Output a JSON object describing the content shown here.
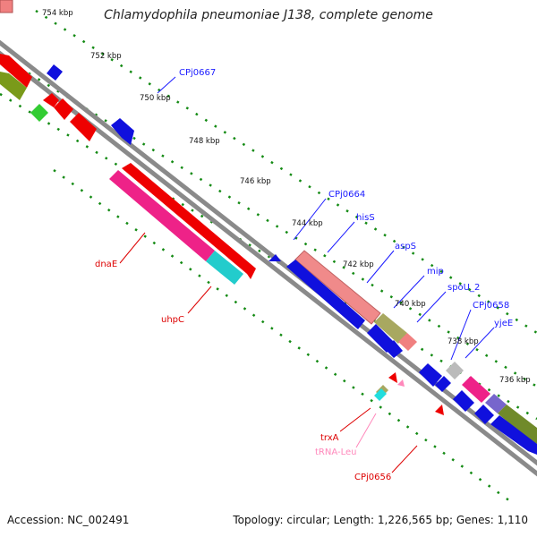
{
  "title": "Chlamydophila pneumoniae J138, complete genome",
  "footer": {
    "accession": "Accession: NC_002491",
    "summary": "Topology: circular; Length: 1,226,565 bp; Genes: 1,110"
  },
  "ruler_ticks": [
    "754 kbp",
    "752 kbp",
    "750 kbp",
    "748 kbp",
    "746 kbp",
    "744 kbp",
    "742 kbp",
    "740 kbp",
    "738 kbp",
    "736 kbp"
  ],
  "gene_labels": {
    "forward": [
      "CPj0667",
      "CPj0664",
      "hisS",
      "aspS",
      "mip",
      "spoU_2",
      "CPj0658",
      "yjeE"
    ],
    "reverse": [
      "dnaE",
      "uhpC",
      "trxA",
      "tRNA-Leu",
      "CPj0656"
    ]
  },
  "colors": {
    "forward_label": "#1a1aff",
    "reverse_label": "#dd0000",
    "trna_label": "#ff88bb",
    "ruler_dots": "#138a13",
    "backbone": "#8a8a8a"
  }
}
